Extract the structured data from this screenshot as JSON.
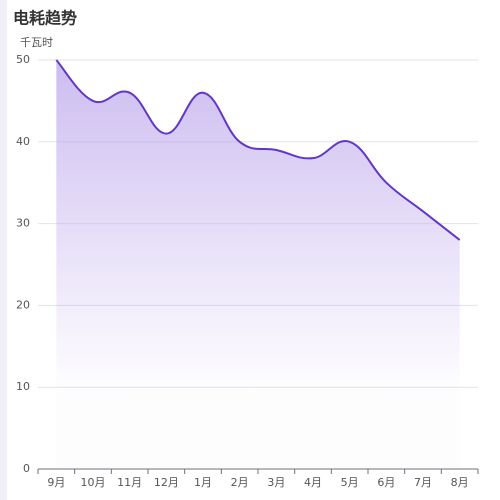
{
  "chart_data": {
    "type": "area",
    "title": "电耗趋势",
    "y_label": "千瓦时",
    "categories": [
      "9月",
      "10月",
      "11月",
      "12月",
      "1月",
      "2月",
      "3月",
      "4月",
      "5月",
      "6月",
      "7月",
      "8月"
    ],
    "values": [
      50,
      45,
      46,
      41,
      46,
      40,
      39,
      38,
      40,
      35,
      31.5,
      28
    ],
    "color": "#6236c9",
    "area_color": "#b7a0ea",
    "ylim": [
      0,
      50
    ],
    "yticks": [
      0,
      10,
      20,
      30,
      40,
      50
    ],
    "grid": true,
    "smooth": true
  }
}
